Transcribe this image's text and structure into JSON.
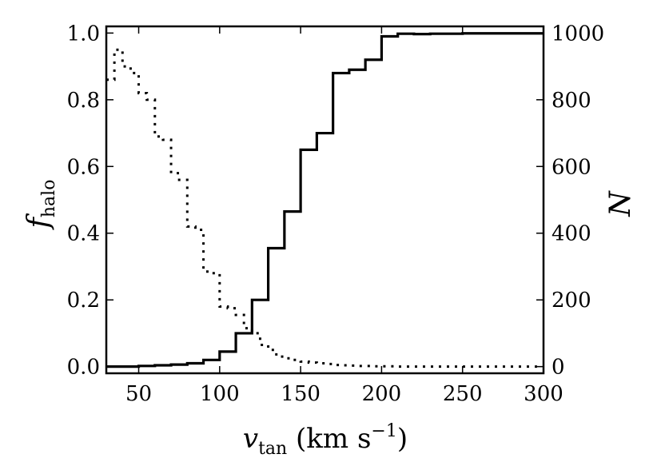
{
  "chart_data": {
    "type": "line",
    "title": "",
    "xlabel": "v_tan (km s^-1)",
    "ylabel_left": "f_halo",
    "ylabel_right": "N",
    "xlim": [
      30,
      300
    ],
    "ylim_left": [
      -0.02,
      1.02
    ],
    "ylim_right": [
      -20,
      1020
    ],
    "x_ticks": [
      50,
      100,
      150,
      200,
      250,
      300
    ],
    "y_left_ticks": [
      "0.0",
      "0.2",
      "0.4",
      "0.6",
      "0.8",
      "1.0"
    ],
    "y_right_ticks": [
      "0",
      "200",
      "400",
      "600",
      "800",
      "1000"
    ],
    "grid": false,
    "legend": "none",
    "bin_edges": [
      30,
      40,
      50,
      60,
      70,
      80,
      90,
      100,
      110,
      120,
      130,
      140,
      150,
      160,
      170,
      180,
      190,
      200,
      210,
      220,
      230,
      240,
      250,
      260,
      270,
      280,
      290,
      300
    ],
    "series": [
      {
        "style": "solid",
        "axis": "left",
        "color": "#000000",
        "values": [
          0.0,
          0.0,
          0.002,
          0.004,
          0.006,
          0.01,
          0.02,
          0.045,
          0.1,
          0.2,
          0.355,
          0.465,
          0.65,
          0.7,
          0.88,
          0.89,
          0.92,
          0.99,
          0.998,
          0.997,
          0.998,
          0.998,
          0.999,
          0.999,
          0.999,
          0.999,
          0.999
        ]
      },
      {
        "style": "dotted",
        "axis": "right",
        "color": "#000000",
        "values": [
          860,
          950,
          900,
          880,
          820,
          800,
          690,
          680,
          580,
          560,
          420,
          410,
          285,
          280,
          180,
          175,
          155,
          115,
          100,
          65,
          50,
          30,
          25,
          20,
          15,
          12,
          10,
          8,
          5,
          4,
          3,
          2,
          2,
          1,
          1,
          1,
          0,
          0,
          0,
          0,
          0,
          0,
          0,
          0,
          0,
          0,
          0,
          0,
          0,
          0,
          0,
          0,
          0,
          0
        ]
      }
    ]
  }
}
